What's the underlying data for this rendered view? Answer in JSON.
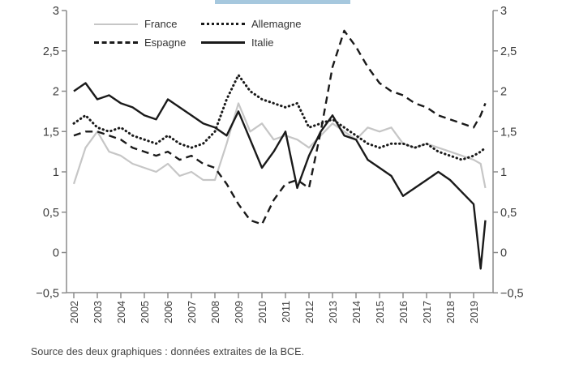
{
  "decoration": {
    "top_bar_color": "#a6c8de"
  },
  "legend": {
    "items": [
      {
        "label": "France",
        "style": "solid",
        "color": "#c6c6c6"
      },
      {
        "label": "Allemagne",
        "style": "dotted",
        "color": "#1a1a1a"
      },
      {
        "label": "Espagne",
        "style": "dashed",
        "color": "#1a1a1a"
      },
      {
        "label": "Italie",
        "style": "solid",
        "color": "#1a1a1a"
      }
    ]
  },
  "source_note": "Source des deux graphiques : données extraites de la BCE.",
  "chart_data": {
    "type": "line",
    "title": "",
    "xlabel": "",
    "ylabel": "",
    "xlim": [
      2001.7,
      2019.85
    ],
    "ylim": [
      -0.5,
      3
    ],
    "grid": false,
    "legend_position": "top-left-inside",
    "x_unit": "year",
    "x": [
      2002,
      2002.5,
      2003,
      2003.5,
      2004,
      2004.5,
      2005,
      2005.5,
      2006,
      2006.5,
      2007,
      2007.5,
      2008,
      2008.5,
      2009,
      2009.5,
      2010,
      2010.5,
      2011,
      2011.5,
      2012,
      2012.5,
      2013,
      2013.5,
      2014,
      2014.5,
      2015,
      2015.5,
      2016,
      2016.5,
      2017,
      2017.5,
      2018,
      2018.5,
      2019,
      2019.3,
      2019.5
    ],
    "series": [
      {
        "name": "France",
        "color": "#c6c6c6",
        "style": "solid",
        "width": 2.2,
        "values": [
          0.85,
          1.3,
          1.5,
          1.25,
          1.2,
          1.1,
          1.05,
          1.0,
          1.1,
          0.95,
          1.0,
          0.9,
          0.9,
          1.35,
          1.85,
          1.5,
          1.6,
          1.4,
          1.45,
          1.4,
          1.3,
          1.45,
          1.6,
          1.5,
          1.4,
          1.55,
          1.5,
          1.55,
          1.35,
          1.3,
          1.35,
          1.3,
          1.25,
          1.2,
          1.15,
          1.1,
          0.8
        ]
      },
      {
        "name": "Espagne",
        "color": "#1a1a1a",
        "style": "dashed",
        "width": 2.4,
        "values": [
          1.45,
          1.5,
          1.5,
          1.45,
          1.4,
          1.3,
          1.25,
          1.2,
          1.25,
          1.15,
          1.2,
          1.1,
          1.05,
          0.85,
          0.6,
          0.4,
          0.35,
          0.65,
          0.85,
          0.9,
          0.8,
          1.5,
          2.3,
          2.75,
          2.55,
          2.3,
          2.1,
          2.0,
          1.95,
          1.85,
          1.8,
          1.7,
          1.65,
          1.6,
          1.55,
          1.7,
          1.85
        ]
      },
      {
        "name": "Allemagne",
        "color": "#1a1a1a",
        "style": "dotted",
        "width": 3,
        "values": [
          1.6,
          1.7,
          1.55,
          1.5,
          1.55,
          1.45,
          1.4,
          1.35,
          1.45,
          1.35,
          1.3,
          1.35,
          1.5,
          1.9,
          2.2,
          2.0,
          1.9,
          1.85,
          1.8,
          1.85,
          1.55,
          1.6,
          1.65,
          1.55,
          1.45,
          1.35,
          1.3,
          1.35,
          1.35,
          1.3,
          1.35,
          1.25,
          1.2,
          1.15,
          1.2,
          1.25,
          1.3
        ]
      },
      {
        "name": "Italie",
        "color": "#1a1a1a",
        "style": "solid",
        "width": 2.4,
        "values": [
          2.0,
          2.1,
          1.9,
          1.95,
          1.85,
          1.8,
          1.7,
          1.65,
          1.9,
          1.8,
          1.7,
          1.6,
          1.55,
          1.45,
          1.75,
          1.4,
          1.05,
          1.25,
          1.5,
          0.8,
          1.2,
          1.5,
          1.7,
          1.45,
          1.4,
          1.15,
          1.05,
          0.95,
          0.7,
          0.8,
          0.9,
          1.0,
          0.9,
          0.75,
          0.6,
          -0.2,
          0.4
        ]
      }
    ],
    "y_ticks": [
      {
        "label": "3",
        "value": 3
      },
      {
        "label": "2,5",
        "value": 2.5
      },
      {
        "label": "2",
        "value": 2
      },
      {
        "label": "1,5",
        "value": 1.5
      },
      {
        "label": "1",
        "value": 1
      },
      {
        "label": "0,5",
        "value": 0.5
      },
      {
        "label": "0",
        "value": 0
      },
      {
        "label": "−0,5",
        "value": -0.5
      }
    ],
    "x_ticks": [
      {
        "label": "2002",
        "value": 2002
      },
      {
        "label": "2003",
        "value": 2003
      },
      {
        "label": "2004",
        "value": 2004
      },
      {
        "label": "2005",
        "value": 2005
      },
      {
        "label": "2006",
        "value": 2006
      },
      {
        "label": "2007",
        "value": 2007
      },
      {
        "label": "2008",
        "value": 2008
      },
      {
        "label": "2009",
        "value": 2009
      },
      {
        "label": "2010",
        "value": 2010
      },
      {
        "label": "2011",
        "value": 2011
      },
      {
        "label": "2012",
        "value": 2012
      },
      {
        "label": "2013",
        "value": 2013
      },
      {
        "label": "2014",
        "value": 2014
      },
      {
        "label": "2015",
        "value": 2015
      },
      {
        "label": "2016",
        "value": 2016
      },
      {
        "label": "2017",
        "value": 2017
      },
      {
        "label": "2018",
        "value": 2018
      },
      {
        "label": "2019",
        "value": 2019
      }
    ]
  }
}
